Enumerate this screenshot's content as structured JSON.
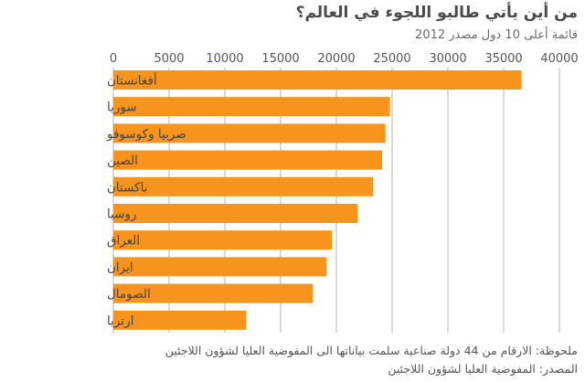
{
  "title": "من أين يأتي طالبو اللجوء في العالم؟",
  "subtitle": "قائمة أعلى 10 دول مصدر 2012",
  "note": "ملحوظة: الارقام من 44 دولة صناعية سلمت بياناتها الى المفوضية العليا لشؤون اللاجئين",
  "source": "المصدر: المفوضية العليا لشؤون اللاجئين",
  "colors": {
    "bar": "#f7941d",
    "grid": "#b5b5b5",
    "axis_text": "#555555",
    "label_text": "#444444"
  },
  "chart_data": {
    "type": "bar",
    "orientation": "horizontal",
    "categories": [
      "أفغانستان",
      "سوريا",
      "صربيا وكوسوفو",
      "الصين",
      "باكستان",
      "روسيا",
      "العراق",
      "ايران",
      "الصومال",
      "ارتريا"
    ],
    "values": [
      36600,
      24800,
      24400,
      24100,
      23300,
      21900,
      19600,
      19100,
      17900,
      11900
    ],
    "xlim": [
      0,
      40000
    ],
    "xticks": [
      0,
      5000,
      10000,
      15000,
      20000,
      25000,
      30000,
      35000,
      40000
    ],
    "grid": true
  }
}
